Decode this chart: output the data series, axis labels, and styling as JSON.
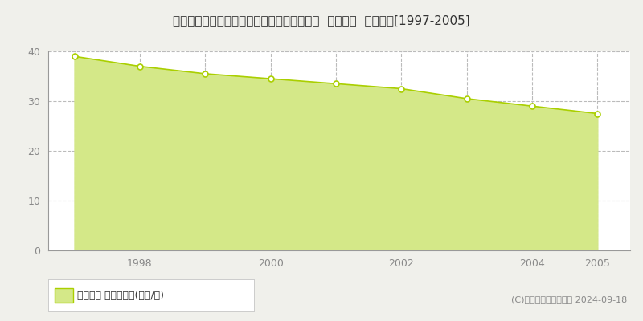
{
  "title": "愛知県一宮市大和町妙興寺字山王浦６５番５  基準地価  地価推移[1997-2005]",
  "years": [
    1997,
    1998,
    1999,
    2000,
    2001,
    2002,
    2003,
    2004,
    2005
  ],
  "values": [
    39.0,
    37.0,
    35.5,
    34.5,
    33.5,
    32.5,
    30.5,
    29.0,
    27.5
  ],
  "line_color": "#aacf00",
  "fill_color": "#d4e888",
  "marker_face": "#ffffff",
  "marker_edge": "#aacf00",
  "bg_color": "#f0f0eb",
  "plot_bg": "#ffffff",
  "grid_color": "#bbbbbb",
  "axis_color": "#888888",
  "ylim": [
    0,
    40
  ],
  "yticks": [
    0,
    10,
    20,
    30,
    40
  ],
  "xtick_labels": [
    "1998",
    "2000",
    "2002",
    "2004",
    "2005"
  ],
  "xtick_positions": [
    1998,
    2000,
    2002,
    2004,
    2005
  ],
  "legend_label": "基準地価 平均坪単価(万円/坪)",
  "copyright": "(C)土地価格ドットコム 2024-09-18",
  "title_fontsize": 11,
  "tick_fontsize": 9,
  "legend_fontsize": 9,
  "copyright_fontsize": 8
}
